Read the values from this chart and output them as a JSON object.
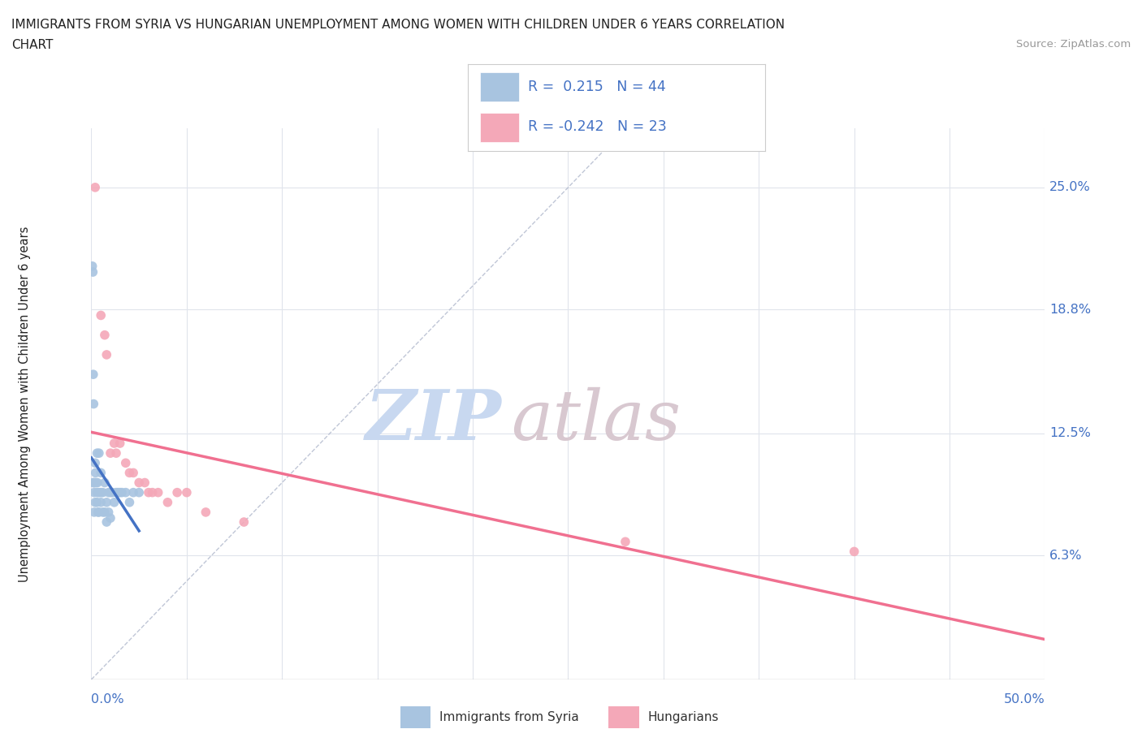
{
  "title_line1": "IMMIGRANTS FROM SYRIA VS HUNGARIAN UNEMPLOYMENT AMONG WOMEN WITH CHILDREN UNDER 6 YEARS CORRELATION",
  "title_line2": "CHART",
  "source_text": "Source: ZipAtlas.com",
  "ylabel": "Unemployment Among Women with Children Under 6 years",
  "xlim": [
    0.0,
    0.5
  ],
  "ylim": [
    0.0,
    0.28
  ],
  "ytick_values": [
    0.063,
    0.125,
    0.188,
    0.25
  ],
  "ytick_labels": [
    "6.3%",
    "12.5%",
    "18.8%",
    "25.0%"
  ],
  "x_start_label": "0.0%",
  "x_end_label": "50.0%",
  "background_color": "#ffffff",
  "grid_color": "#e0e4ec",
  "blue_scatter_color": "#a8c4e0",
  "pink_scatter_color": "#f4a8b8",
  "blue_line_color": "#4472c4",
  "pink_line_color": "#f07090",
  "axis_text_color": "#4472c4",
  "watermark_color": "#dce4f0",
  "syria_x": [
    0.0005,
    0.0008,
    0.001,
    0.001,
    0.0012,
    0.0013,
    0.0015,
    0.0015,
    0.0018,
    0.002,
    0.002,
    0.0022,
    0.0025,
    0.003,
    0.003,
    0.003,
    0.0032,
    0.0035,
    0.004,
    0.004,
    0.004,
    0.005,
    0.005,
    0.005,
    0.006,
    0.006,
    0.007,
    0.007,
    0.008,
    0.008,
    0.009,
    0.009,
    0.01,
    0.01,
    0.011,
    0.012,
    0.013,
    0.014,
    0.015,
    0.016,
    0.018,
    0.02,
    0.022,
    0.025
  ],
  "syria_y": [
    0.21,
    0.207,
    0.155,
    0.1,
    0.14,
    0.1,
    0.095,
    0.085,
    0.1,
    0.11,
    0.09,
    0.105,
    0.1,
    0.115,
    0.095,
    0.09,
    0.1,
    0.085,
    0.115,
    0.095,
    0.085,
    0.105,
    0.095,
    0.09,
    0.095,
    0.085,
    0.1,
    0.085,
    0.09,
    0.08,
    0.095,
    0.085,
    0.095,
    0.082,
    0.095,
    0.09,
    0.095,
    0.095,
    0.095,
    0.095,
    0.095,
    0.09,
    0.095,
    0.095
  ],
  "hungarian_x": [
    0.002,
    0.005,
    0.007,
    0.008,
    0.01,
    0.012,
    0.013,
    0.015,
    0.018,
    0.02,
    0.022,
    0.025,
    0.028,
    0.03,
    0.032,
    0.035,
    0.04,
    0.045,
    0.05,
    0.06,
    0.08,
    0.28,
    0.4
  ],
  "hungarian_y": [
    0.25,
    0.185,
    0.175,
    0.165,
    0.115,
    0.12,
    0.115,
    0.12,
    0.11,
    0.105,
    0.105,
    0.1,
    0.1,
    0.095,
    0.095,
    0.095,
    0.09,
    0.095,
    0.095,
    0.085,
    0.08,
    0.07,
    0.065
  ],
  "blue_line_x": [
    0.0,
    0.025
  ],
  "pink_line_x": [
    0.0,
    0.5
  ]
}
